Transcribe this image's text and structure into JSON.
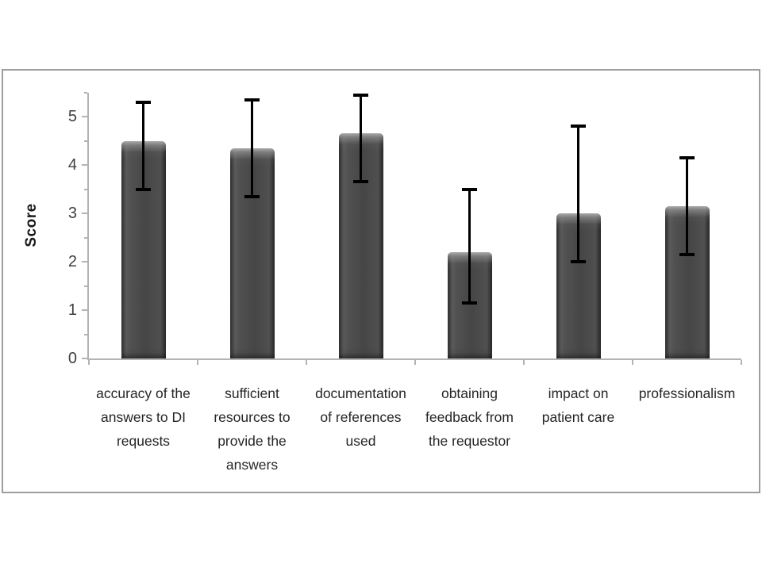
{
  "chart_data": {
    "type": "bar",
    "title": "",
    "xlabel": "",
    "ylabel": "Score",
    "categories": [
      "accuracy of the answers to DI requests",
      "sufficient resources to provide the answers",
      "documentation of references used",
      "obtaining feedback from the requestor",
      "impact on patient care",
      "professionalism"
    ],
    "categories_display": [
      "accuracy of the\nanswers to DI\nrequests",
      "sufficient\nresources to\nprovide the\nanswers",
      "documentation\nof references\nused",
      "obtaining\nfeedback from\nthe requestor",
      "impact on\npatient care",
      "professionalism"
    ],
    "values": [
      4.5,
      4.35,
      4.65,
      2.2,
      3.0,
      3.15
    ],
    "error_low": [
      3.5,
      3.35,
      3.65,
      1.15,
      2.0,
      2.15
    ],
    "error_high": [
      5.3,
      5.35,
      5.45,
      3.5,
      4.8,
      4.15
    ],
    "y_ticks": [
      0,
      1,
      2,
      3,
      4,
      5
    ],
    "y_minor_interval": 0.5,
    "ylim": [
      0,
      5.5
    ],
    "grid": false,
    "legend": null,
    "colors": {
      "bar": "#4b4b4b",
      "bar_edge": "#2d2d2d",
      "error_bar": "#000000",
      "axis": "#b3b3b3",
      "tick_label": "#3f3f3f",
      "frame_border": "#9e9e9e",
      "background": "#ffffff"
    }
  }
}
